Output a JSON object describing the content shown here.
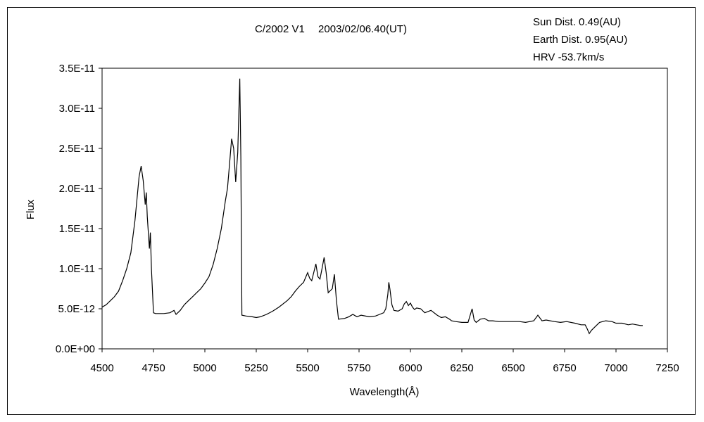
{
  "chart_data": {
    "type": "line",
    "title": "C/2002 V1　 2003/02/06.40(UT)",
    "info": [
      "Sun Dist. 0.49(AU)",
      "Earth Dist. 0.95(AU)",
      "HRV -53.7km/s"
    ],
    "xlabel": "Wavelength(Å)",
    "ylabel": "Flux",
    "xlim": [
      4500,
      7250
    ],
    "ylim": [
      0,
      3.5e-11
    ],
    "x_ticks": [
      "4500",
      "4750",
      "5000",
      "5250",
      "5500",
      "5750",
      "6000",
      "6250",
      "6500",
      "6750",
      "7000",
      "7250"
    ],
    "y_ticks": [
      "0.0E+00",
      "5.0E-12",
      "1.0E-11",
      "1.5E-11",
      "2.0E-11",
      "2.5E-11",
      "3.0E-11",
      "3.5E-11"
    ],
    "grid": false,
    "legend": "none",
    "line_color": "#000000",
    "series": [
      {
        "x": [
          4500,
          4520,
          4540,
          4560,
          4580,
          4600,
          4620,
          4640,
          4660,
          4680,
          4690,
          4700,
          4710,
          4715,
          4720,
          4730,
          4735,
          4740,
          4750,
          4760,
          4800,
          4830,
          4850,
          4860,
          4880,
          4900,
          4920,
          4940,
          4960,
          4980,
          5000,
          5020,
          5040,
          5060,
          5080,
          5100,
          5110,
          5120,
          5130,
          5140,
          5150,
          5160,
          5170,
          5175,
          5180,
          5200,
          5230,
          5250,
          5270,
          5300,
          5330,
          5360,
          5400,
          5420,
          5440,
          5460,
          5480,
          5500,
          5510,
          5520,
          5540,
          5550,
          5560,
          5570,
          5580,
          5590,
          5600,
          5620,
          5630,
          5640,
          5650,
          5680,
          5700,
          5720,
          5740,
          5760,
          5800,
          5830,
          5850,
          5870,
          5880,
          5890,
          5895,
          5900,
          5910,
          5920,
          5940,
          5960,
          5970,
          5980,
          5990,
          6000,
          6010,
          6020,
          6030,
          6050,
          6070,
          6100,
          6130,
          6150,
          6170,
          6190,
          6200,
          6220,
          6250,
          6280,
          6300,
          6310,
          6320,
          6340,
          6360,
          6380,
          6400,
          6430,
          6460,
          6500,
          6530,
          6560,
          6600,
          6620,
          6640,
          6660,
          6700,
          6730,
          6760,
          6800,
          6830,
          6850,
          6860,
          6870,
          6880,
          6900,
          6920,
          6950,
          6980,
          7000,
          7030,
          7060,
          7080,
          7100,
          7120,
          7130
        ],
        "y": [
          5.2e-12,
          5.5e-12,
          6e-12,
          6.5e-12,
          7.2e-12,
          8.5e-12,
          1e-11,
          1.2e-11,
          1.6e-11,
          2.15e-11,
          2.28e-11,
          2.1e-11,
          1.8e-11,
          1.95e-11,
          1.65e-11,
          1.25e-11,
          1.45e-11,
          1e-11,
          4.5e-12,
          4.4e-12,
          4.4e-12,
          4.5e-12,
          4.8e-12,
          4.3e-12,
          4.8e-12,
          5.5e-12,
          6e-12,
          6.5e-12,
          7e-12,
          7.5e-12,
          8.2e-12,
          9e-12,
          1.05e-11,
          1.25e-11,
          1.5e-11,
          1.85e-11,
          2e-11,
          2.3e-11,
          2.62e-11,
          2.5e-11,
          2.08e-11,
          2.45e-11,
          3.37e-11,
          2.4e-11,
          4.2e-12,
          4.1e-12,
          4e-12,
          3.9e-12,
          4e-12,
          4.3e-12,
          4.7e-12,
          5.2e-12,
          6e-12,
          6.5e-12,
          7.2e-12,
          7.8e-12,
          8.3e-12,
          9.5e-12,
          8.8e-12,
          8.5e-12,
          1.06e-11,
          9e-12,
          8.7e-12,
          1e-11,
          1.14e-11,
          9.5e-12,
          7e-12,
          7.5e-12,
          9.3e-12,
          6e-12,
          3.7e-12,
          3.8e-12,
          4e-12,
          4.3e-12,
          4e-12,
          4.2e-12,
          4e-12,
          4.1e-12,
          4.3e-12,
          4.5e-12,
          5e-12,
          6.8e-12,
          8.3e-12,
          7.5e-12,
          5.5e-12,
          4.8e-12,
          4.7e-12,
          5e-12,
          5.6e-12,
          5.9e-12,
          5.4e-12,
          5.7e-12,
          5.2e-12,
          4.9e-12,
          5.1e-12,
          5e-12,
          4.5e-12,
          4.8e-12,
          4.2e-12,
          3.9e-12,
          4e-12,
          3.7e-12,
          3.5e-12,
          3.4e-12,
          3.3e-12,
          3.3e-12,
          5e-12,
          3.6e-12,
          3.3e-12,
          3.7e-12,
          3.8e-12,
          3.5e-12,
          3.5e-12,
          3.4e-12,
          3.4e-12,
          3.4e-12,
          3.4e-12,
          3.3e-12,
          3.5e-12,
          4.2e-12,
          3.5e-12,
          3.6e-12,
          3.4e-12,
          3.3e-12,
          3.4e-12,
          3.2e-12,
          3e-12,
          3e-12,
          2.5e-12,
          1.9e-12,
          2.3e-12,
          2.8e-12,
          3.3e-12,
          3.5e-12,
          3.4e-12,
          3.2e-12,
          3.2e-12,
          3e-12,
          3.1e-12,
          3e-12,
          2.9e-12,
          2.9e-12
        ]
      }
    ]
  }
}
